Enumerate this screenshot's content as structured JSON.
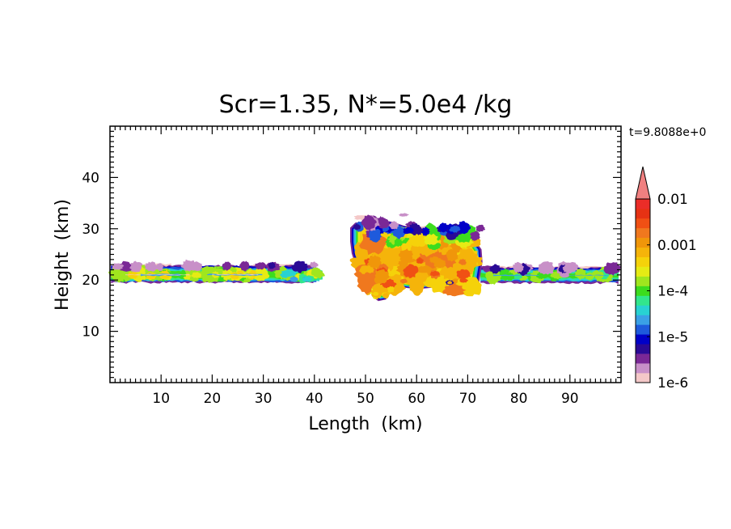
{
  "chart_data": {
    "type": "heatmap",
    "title": "Scr=1.35, N*=5.0e4 /kg",
    "annotation": "t=9.8088e+0",
    "xlabel": "Length  (km)",
    "ylabel": "Height  (km)",
    "xlim": [
      0,
      100
    ],
    "ylim": [
      0,
      50
    ],
    "xticks": [
      10,
      20,
      30,
      40,
      50,
      60,
      70,
      80,
      90
    ],
    "yticks": [
      10,
      20,
      30,
      40
    ],
    "colorbar": {
      "scale": "log",
      "range": [
        1e-06,
        0.01
      ],
      "tick_values": [
        0.01,
        0.001,
        0.0001,
        1e-05,
        1e-06
      ],
      "tick_labels": [
        "0.01",
        "0.001",
        "1e-4",
        "1e-5",
        "1e-6"
      ],
      "extend": "max",
      "colors": [
        "#f4c8c8",
        "#c890c8",
        "#7a2896",
        "#2a0a96",
        "#0000c8",
        "#1e5adc",
        "#3aa0e6",
        "#28d2d2",
        "#32e68c",
        "#3cdc1e",
        "#a0e61e",
        "#e6eb14",
        "#f5d20a",
        "#f5b40a",
        "#f0960a",
        "#f0781e",
        "#f05014",
        "#e63214",
        "#eb2d28",
        "#f08080"
      ]
    },
    "regions": [
      {
        "name": "left layer",
        "x": [
          0,
          42
        ],
        "y": [
          19.5,
          23.0
        ],
        "peak": "1e-4 to 1e-3"
      },
      {
        "name": "central cloud",
        "x": [
          47,
          73
        ],
        "y": [
          16,
          32
        ],
        "peak": "about 1e-3"
      },
      {
        "name": "right layer",
        "x": [
          72,
          100
        ],
        "y": [
          19.5,
          22.5
        ],
        "peak": "about 1e-4"
      }
    ]
  }
}
